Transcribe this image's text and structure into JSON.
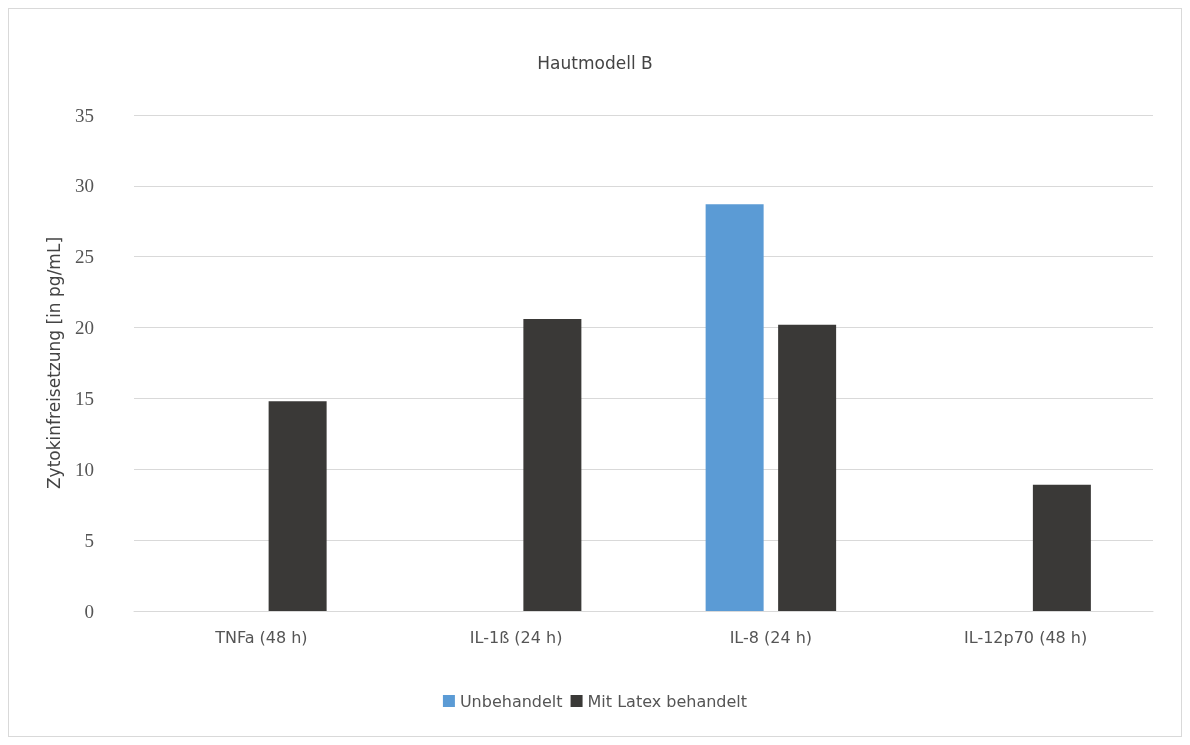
{
  "chart_data": {
    "type": "bar",
    "title": "Hautmodell B",
    "ylabel": "Zytokinfreisetzung [in pg/mL]",
    "categories": [
      "TNFa (48 h)",
      "IL-1ß (24 h)",
      "IL-8 (24 h)",
      "IL-12p70 (48 h)"
    ],
    "series": [
      {
        "name": "Unbehandelt",
        "color": "#5b9bd5",
        "values": [
          0,
          0,
          28.7,
          0
        ]
      },
      {
        "name": "Mit Latex behandelt",
        "color": "#3a3937",
        "values": [
          14.8,
          20.6,
          20.2,
          8.9
        ]
      }
    ],
    "ylim": [
      0,
      35
    ],
    "yticks": [
      0,
      5,
      10,
      15,
      20,
      25,
      30,
      35
    ],
    "grid": "y",
    "legend": "bottom"
  }
}
